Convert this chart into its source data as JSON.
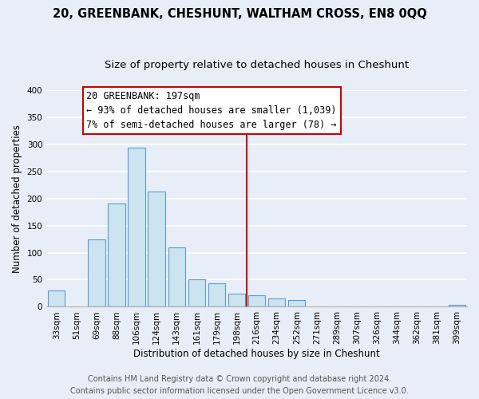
{
  "title": "20, GREENBANK, CHESHUNT, WALTHAM CROSS, EN8 0QQ",
  "subtitle": "Size of property relative to detached houses in Cheshunt",
  "xlabel": "Distribution of detached houses by size in Cheshunt",
  "ylabel": "Number of detached properties",
  "bar_labels": [
    "33sqm",
    "51sqm",
    "69sqm",
    "88sqm",
    "106sqm",
    "124sqm",
    "143sqm",
    "161sqm",
    "179sqm",
    "198sqm",
    "216sqm",
    "234sqm",
    "252sqm",
    "271sqm",
    "289sqm",
    "307sqm",
    "326sqm",
    "344sqm",
    "362sqm",
    "381sqm",
    "399sqm"
  ],
  "bar_heights": [
    30,
    0,
    125,
    190,
    293,
    212,
    109,
    50,
    44,
    24,
    21,
    16,
    13,
    0,
    0,
    0,
    0,
    0,
    0,
    0,
    3
  ],
  "bar_color": "#cce4f0",
  "bar_edge_color": "#5b9bd5",
  "vline_x_idx": 9.5,
  "vline_color": "#cc0000",
  "annotation_title": "20 GREENBANK: 197sqm",
  "annotation_line1": "← 93% of detached houses are smaller (1,039)",
  "annotation_line2": "7% of semi-detached houses are larger (78) →",
  "annotation_box_edge": "#cc0000",
  "ylim": [
    0,
    400
  ],
  "yticks": [
    0,
    50,
    100,
    150,
    200,
    250,
    300,
    350,
    400
  ],
  "footer_line1": "Contains HM Land Registry data © Crown copyright and database right 2024.",
  "footer_line2": "Contains public sector information licensed under the Open Government Licence v3.0.",
  "background_color": "#e8eef8",
  "grid_color": "#ffffff",
  "title_fontsize": 10.5,
  "subtitle_fontsize": 9.5,
  "axis_label_fontsize": 8.5,
  "tick_fontsize": 7.5,
  "annotation_fontsize": 8.5,
  "footer_fontsize": 7.0
}
